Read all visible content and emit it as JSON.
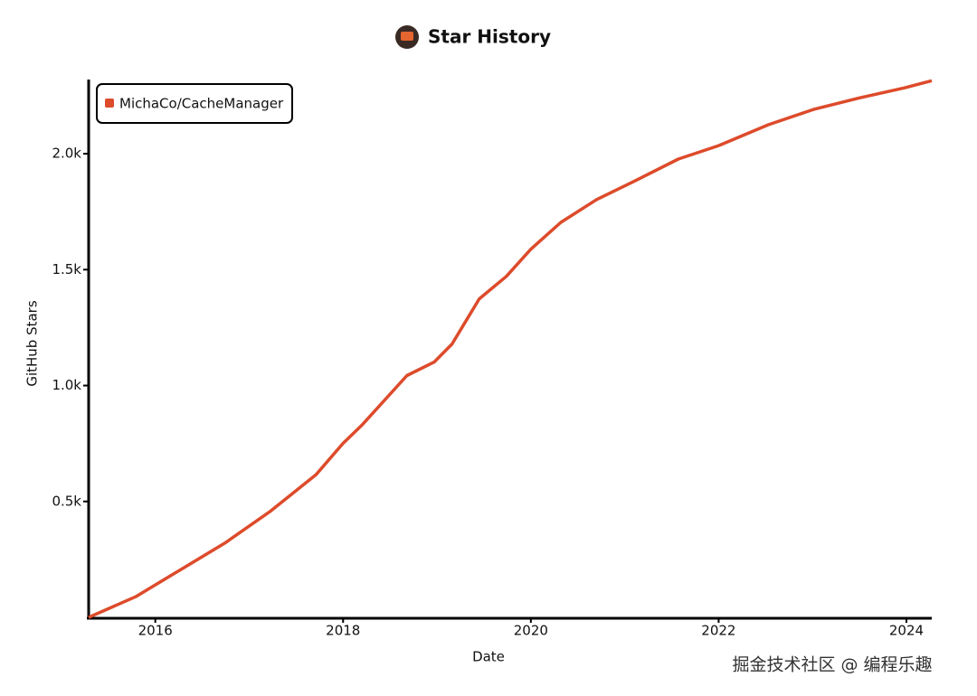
{
  "chart_data": {
    "type": "line",
    "title": "Star History",
    "x_label": "Date",
    "y_label": "GitHub Stars",
    "x": [
      2015.29,
      2015.79,
      2016.27,
      2016.75,
      2017.23,
      2017.71,
      2018.0,
      2018.2,
      2018.68,
      2018.97,
      2019.16,
      2019.45,
      2019.74,
      2020.0,
      2020.32,
      2020.7,
      2021.09,
      2021.57,
      2022.0,
      2022.53,
      2023.01,
      2023.5,
      2023.98,
      2024.27
    ],
    "series": [
      {
        "name": "MichaCo/CacheManager",
        "color": "#dd4b2b",
        "values": [
          0,
          89,
          206,
          323,
          459,
          615,
          751,
          829,
          1043,
          1101,
          1179,
          1374,
          1471,
          1588,
          1704,
          1802,
          1879,
          1977,
          2035,
          2125,
          2191,
          2241,
          2284,
          2315
        ]
      }
    ],
    "xlim": [
      2015.29,
      2024.27
    ],
    "xticks": [
      2016,
      2018,
      2020,
      2022,
      2024
    ],
    "ylim": [
      0,
      2320
    ],
    "yticks": [
      {
        "value": 500,
        "label": "0.5k"
      },
      {
        "value": 1000,
        "label": "1.0k"
      },
      {
        "value": 1500,
        "label": "1.5k"
      },
      {
        "value": 2000,
        "label": "2.0k"
      }
    ],
    "legend": "top-left"
  },
  "watermark": "掘金技术社区 @ 编程乐趣"
}
